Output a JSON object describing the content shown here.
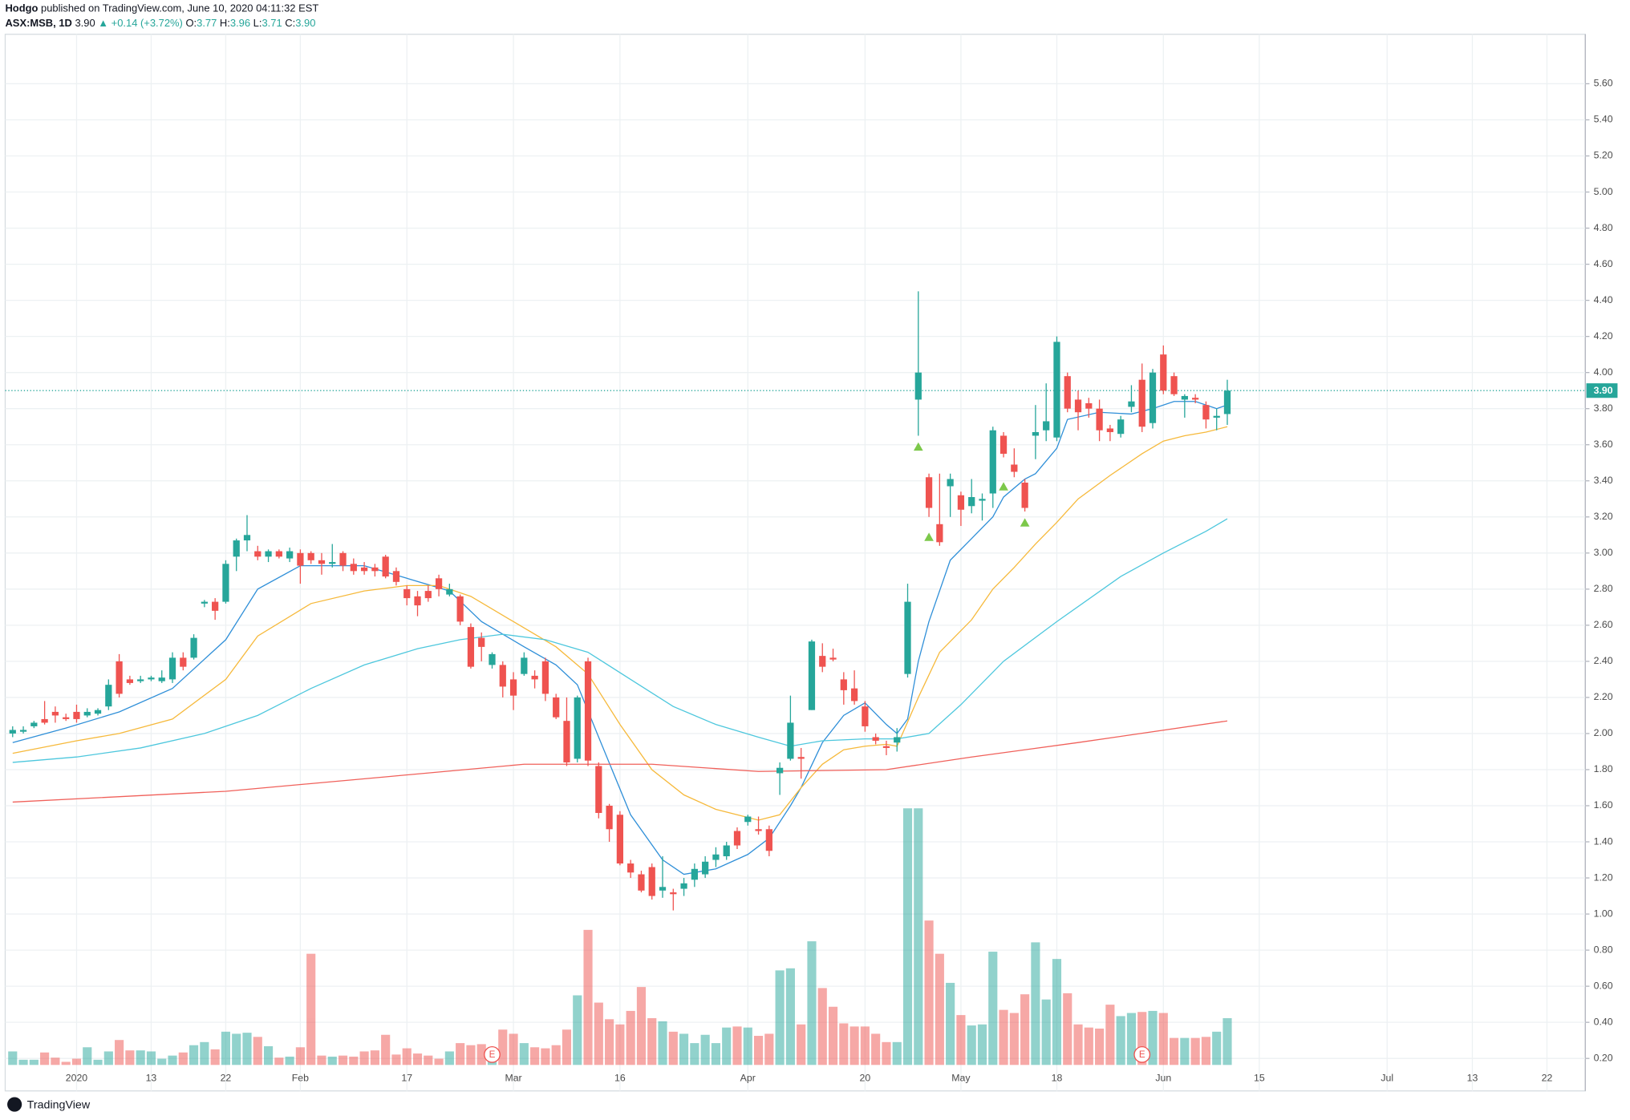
{
  "header": {
    "author": "Hodgo",
    "published": "published on TradingView.com, June 10, 2020 04:11:32 EST",
    "symbol": "ASX:MSB, 1D",
    "price": "3.90",
    "change": "▲ +0.14 (+3.72%)",
    "ohlc": [
      {
        "label": "O:",
        "value": "3.77"
      },
      {
        "label": "H:",
        "value": "3.96"
      },
      {
        "label": "L:",
        "value": "3.71"
      },
      {
        "label": "C:",
        "value": "3.90"
      }
    ]
  },
  "footer": {
    "logo": "TradingView"
  },
  "chart_data": {
    "type": "candlestick",
    "up_color": "#26a69a",
    "down_color": "#ef5350",
    "grid": true,
    "ylim": [
      0.02,
      5.874
    ],
    "yticks": [
      {
        "value": 0.2,
        "label": "0.20"
      },
      {
        "value": 0.4,
        "label": "0.40"
      },
      {
        "value": 0.6,
        "label": "0.60"
      },
      {
        "value": 0.8,
        "label": "0.80"
      },
      {
        "value": 1.0,
        "label": "1.00"
      },
      {
        "value": 1.2,
        "label": "1.20"
      },
      {
        "value": 1.4,
        "label": "1.40"
      },
      {
        "value": 1.6,
        "label": "1.60"
      },
      {
        "value": 1.8,
        "label": "1.80"
      },
      {
        "value": 2.0,
        "label": "2.00"
      },
      {
        "value": 2.2,
        "label": "2.20"
      },
      {
        "value": 2.4,
        "label": "2.40"
      },
      {
        "value": 2.6,
        "label": "2.60"
      },
      {
        "value": 2.8,
        "label": "2.80"
      },
      {
        "value": 3.0,
        "label": "3.00"
      },
      {
        "value": 3.2,
        "label": "3.20"
      },
      {
        "value": 3.4,
        "label": "3.40"
      },
      {
        "value": 3.6,
        "label": "3.60"
      },
      {
        "value": 3.8,
        "label": "3.80"
      },
      {
        "value": 4.0,
        "label": "4.00"
      },
      {
        "value": 4.2,
        "label": "4.20"
      },
      {
        "value": 4.4,
        "label": "4.40"
      },
      {
        "value": 4.6,
        "label": "4.60"
      },
      {
        "value": 4.8,
        "label": "4.80"
      },
      {
        "value": 5.0,
        "label": "5.00"
      },
      {
        "value": 5.2,
        "label": "5.20"
      },
      {
        "value": 5.4,
        "label": "5.40"
      },
      {
        "value": 5.6,
        "label": "5.60"
      }
    ],
    "xlim": [
      -0.7,
      147.6
    ],
    "xticks": [
      {
        "value": 6,
        "label": "2020"
      },
      {
        "value": 13,
        "label": "13"
      },
      {
        "value": 20,
        "label": "22"
      },
      {
        "value": 27,
        "label": "Feb"
      },
      {
        "value": 37,
        "label": "17"
      },
      {
        "value": 47,
        "label": "Mar"
      },
      {
        "value": 57,
        "label": "16"
      },
      {
        "value": 69,
        "label": "Apr"
      },
      {
        "value": 80,
        "label": "20"
      },
      {
        "value": 89,
        "label": "May"
      },
      {
        "value": 98,
        "label": "18"
      },
      {
        "value": 108,
        "label": "Jun"
      },
      {
        "value": 117,
        "label": "15"
      },
      {
        "value": 129,
        "label": "Jul"
      },
      {
        "value": 137,
        "label": "13"
      },
      {
        "value": 144,
        "label": "22"
      }
    ],
    "candles": [
      [
        2.0,
        2.04,
        1.98,
        2.02
      ],
      [
        2.01,
        2.04,
        2.0,
        2.02
      ],
      [
        2.04,
        2.07,
        2.03,
        2.06
      ],
      [
        2.08,
        2.18,
        2.05,
        2.06
      ],
      [
        2.12,
        2.15,
        2.06,
        2.1
      ],
      [
        2.09,
        2.11,
        2.07,
        2.08
      ],
      [
        2.12,
        2.16,
        2.06,
        2.08
      ],
      [
        2.1,
        2.14,
        2.09,
        2.12
      ],
      [
        2.11,
        2.14,
        2.1,
        2.13
      ],
      [
        2.15,
        2.3,
        2.13,
        2.27
      ],
      [
        2.4,
        2.44,
        2.2,
        2.22
      ],
      [
        2.3,
        2.32,
        2.27,
        2.28
      ],
      [
        2.29,
        2.32,
        2.28,
        2.3
      ],
      [
        2.3,
        2.32,
        2.29,
        2.31
      ],
      [
        2.29,
        2.35,
        2.28,
        2.31
      ],
      [
        2.3,
        2.45,
        2.28,
        2.42
      ],
      [
        2.42,
        2.45,
        2.35,
        2.37
      ],
      [
        2.42,
        2.55,
        2.41,
        2.53
      ],
      [
        2.72,
        2.74,
        2.7,
        2.73
      ],
      [
        2.73,
        2.75,
        2.63,
        2.68
      ],
      [
        2.73,
        2.96,
        2.72,
        2.94
      ],
      [
        2.98,
        3.08,
        2.9,
        3.07
      ],
      [
        3.07,
        3.21,
        3.01,
        3.1
      ],
      [
        3.01,
        3.04,
        2.96,
        2.98
      ],
      [
        2.98,
        3.02,
        2.95,
        3.01
      ],
      [
        3.01,
        3.02,
        2.97,
        2.98
      ],
      [
        2.97,
        3.03,
        2.95,
        3.01
      ],
      [
        3.0,
        3.02,
        2.83,
        2.93
      ],
      [
        3.0,
        3.01,
        2.94,
        2.96
      ],
      [
        2.96,
        3.0,
        2.88,
        2.94
      ],
      [
        2.94,
        3.05,
        2.92,
        2.95
      ],
      [
        3.0,
        3.01,
        2.9,
        2.93
      ],
      [
        2.94,
        2.97,
        2.88,
        2.9
      ],
      [
        2.92,
        2.95,
        2.88,
        2.9
      ],
      [
        2.92,
        2.94,
        2.87,
        2.9
      ],
      [
        2.98,
        2.99,
        2.86,
        2.87
      ],
      [
        2.9,
        2.92,
        2.82,
        2.84
      ],
      [
        2.8,
        2.82,
        2.71,
        2.75
      ],
      [
        2.76,
        2.79,
        2.65,
        2.71
      ],
      [
        2.79,
        2.82,
        2.73,
        2.75
      ],
      [
        2.86,
        2.88,
        2.76,
        2.8
      ],
      [
        2.77,
        2.83,
        2.76,
        2.8
      ],
      [
        2.76,
        2.77,
        2.6,
        2.62
      ],
      [
        2.59,
        2.61,
        2.36,
        2.37
      ],
      [
        2.53,
        2.56,
        2.4,
        2.48
      ],
      [
        2.38,
        2.45,
        2.36,
        2.44
      ],
      [
        2.38,
        2.4,
        2.2,
        2.26
      ],
      [
        2.3,
        2.34,
        2.13,
        2.21
      ],
      [
        2.33,
        2.45,
        2.32,
        2.42
      ],
      [
        2.32,
        2.35,
        2.25,
        2.3
      ],
      [
        2.4,
        2.42,
        2.18,
        2.22
      ],
      [
        2.2,
        2.22,
        2.08,
        2.09
      ],
      [
        2.07,
        2.2,
        1.82,
        1.84
      ],
      [
        1.86,
        2.21,
        1.84,
        2.2
      ],
      [
        2.4,
        2.42,
        1.82,
        1.85
      ],
      [
        1.82,
        1.84,
        1.53,
        1.56
      ],
      [
        1.6,
        1.61,
        1.4,
        1.47
      ],
      [
        1.55,
        1.57,
        1.27,
        1.28
      ],
      [
        1.28,
        1.3,
        1.2,
        1.23
      ],
      [
        1.22,
        1.24,
        1.12,
        1.13
      ],
      [
        1.26,
        1.28,
        1.08,
        1.1
      ],
      [
        1.13,
        1.32,
        1.09,
        1.15
      ],
      [
        1.12,
        1.14,
        1.02,
        1.11
      ],
      [
        1.14,
        1.2,
        1.1,
        1.17
      ],
      [
        1.19,
        1.28,
        1.15,
        1.25
      ],
      [
        1.22,
        1.32,
        1.2,
        1.29
      ],
      [
        1.3,
        1.37,
        1.26,
        1.33
      ],
      [
        1.32,
        1.4,
        1.3,
        1.38
      ],
      [
        1.46,
        1.48,
        1.36,
        1.38
      ],
      [
        1.51,
        1.55,
        1.49,
        1.54
      ],
      [
        1.47,
        1.54,
        1.44,
        1.46
      ],
      [
        1.47,
        1.49,
        1.32,
        1.35
      ],
      [
        1.78,
        1.84,
        1.66,
        1.81
      ],
      [
        1.86,
        2.21,
        1.85,
        2.06
      ],
      [
        1.87,
        1.92,
        1.75,
        1.86
      ],
      [
        2.13,
        2.52,
        2.13,
        2.51
      ],
      [
        2.43,
        2.5,
        2.34,
        2.37
      ],
      [
        2.42,
        2.47,
        2.4,
        2.41
      ],
      [
        2.3,
        2.34,
        2.16,
        2.24
      ],
      [
        2.25,
        2.35,
        2.16,
        2.18
      ],
      [
        2.15,
        2.18,
        2.01,
        2.04
      ],
      [
        1.98,
        2.0,
        1.94,
        1.96
      ],
      [
        1.93,
        1.96,
        1.88,
        1.92
      ],
      [
        1.95,
        2.03,
        1.9,
        1.98
      ],
      [
        2.33,
        2.83,
        2.31,
        2.73
      ],
      [
        3.85,
        4.45,
        3.65,
        4.0
      ],
      [
        3.42,
        3.44,
        3.2,
        3.25
      ],
      [
        3.16,
        3.44,
        3.04,
        3.06
      ],
      [
        3.37,
        3.44,
        3.2,
        3.41
      ],
      [
        3.32,
        3.34,
        3.15,
        3.24
      ],
      [
        3.26,
        3.41,
        3.22,
        3.31
      ],
      [
        3.29,
        3.33,
        3.18,
        3.3
      ],
      [
        3.33,
        3.7,
        3.25,
        3.68
      ],
      [
        3.65,
        3.67,
        3.53,
        3.55
      ],
      [
        3.49,
        3.58,
        3.42,
        3.45
      ],
      [
        3.39,
        3.41,
        3.23,
        3.25
      ],
      [
        3.65,
        3.82,
        3.52,
        3.67
      ],
      [
        3.68,
        3.94,
        3.62,
        3.73
      ],
      [
        3.64,
        4.2,
        3.62,
        4.17
      ],
      [
        3.98,
        4.0,
        3.78,
        3.8
      ],
      [
        3.85,
        3.9,
        3.68,
        3.78
      ],
      [
        3.83,
        3.86,
        3.75,
        3.8
      ],
      [
        3.8,
        3.85,
        3.62,
        3.68
      ],
      [
        3.69,
        3.71,
        3.62,
        3.67
      ],
      [
        3.66,
        3.76,
        3.64,
        3.74
      ],
      [
        3.81,
        3.93,
        3.78,
        3.84
      ],
      [
        3.96,
        4.05,
        3.67,
        3.7
      ],
      [
        3.72,
        4.02,
        3.69,
        4.0
      ],
      [
        4.1,
        4.15,
        3.88,
        3.9
      ],
      [
        3.98,
        4.0,
        3.87,
        3.88
      ],
      [
        3.85,
        3.88,
        3.75,
        3.87
      ],
      [
        3.86,
        3.88,
        3.83,
        3.85
      ],
      [
        3.82,
        3.84,
        3.69,
        3.74
      ],
      [
        3.75,
        3.8,
        3.68,
        3.76
      ],
      [
        3.77,
        3.96,
        3.71,
        3.9
      ]
    ],
    "volume": [
      13,
      5,
      5,
      12,
      7,
      3,
      6,
      17,
      5,
      13,
      24,
      14,
      14,
      13,
      6,
      9,
      12,
      19,
      22,
      15,
      32,
      30,
      31,
      27,
      18,
      7,
      8,
      17,
      107,
      9,
      8,
      9,
      8,
      13,
      14,
      29,
      10,
      16,
      11,
      9,
      6,
      13,
      21,
      19,
      20,
      17,
      34,
      30,
      21,
      17,
      16,
      19,
      34,
      67,
      130,
      60,
      44,
      39,
      52,
      75,
      45,
      42,
      32,
      30,
      21,
      29,
      21,
      36,
      37,
      36,
      28,
      30,
      91,
      93,
      39,
      119,
      74,
      56,
      40,
      37,
      37,
      30,
      22,
      22,
      247,
      247,
      139,
      107,
      79,
      48,
      38,
      39,
      109,
      53,
      50,
      68,
      118,
      63,
      102,
      69,
      39,
      36,
      35,
      58,
      47,
      50,
      51,
      52,
      50,
      26,
      26,
      26,
      27,
      32,
      45
    ],
    "moving_averages": [
      {
        "color": "#2f8fd8",
        "x": [
          0,
          5,
          10,
          15,
          20,
          23,
          27,
          33,
          37,
          41,
          44,
          48,
          51,
          53,
          55,
          58,
          61,
          63,
          66,
          69,
          71,
          73,
          74,
          76,
          78,
          80,
          82,
          83,
          84,
          85,
          86,
          88,
          90,
          92,
          93,
          95,
          96,
          98,
          99,
          102,
          105,
          107,
          109,
          111,
          113,
          114
        ],
        "values": [
          1.95,
          2.03,
          2.12,
          2.25,
          2.52,
          2.8,
          2.93,
          2.93,
          2.86,
          2.79,
          2.62,
          2.48,
          2.38,
          2.27,
          1.98,
          1.55,
          1.3,
          1.22,
          1.25,
          1.33,
          1.42,
          1.6,
          1.7,
          1.95,
          2.1,
          2.17,
          2.05,
          2.0,
          2.08,
          2.4,
          2.62,
          2.96,
          3.08,
          3.2,
          3.31,
          3.41,
          3.44,
          3.58,
          3.74,
          3.78,
          3.77,
          3.8,
          3.84,
          3.84,
          3.8,
          3.82
        ]
      },
      {
        "color": "#f6b93b",
        "x": [
          0,
          6,
          10,
          15,
          20,
          23,
          28,
          33,
          37,
          40,
          43,
          47,
          51,
          54,
          57,
          60,
          63,
          66,
          68,
          70,
          72,
          74,
          76,
          78,
          80,
          82,
          83,
          85,
          87,
          90,
          92,
          94,
          96,
          98,
          100,
          103,
          106,
          108,
          110,
          112,
          114
        ],
        "values": [
          1.89,
          1.96,
          2.0,
          2.08,
          2.3,
          2.54,
          2.72,
          2.79,
          2.82,
          2.82,
          2.76,
          2.62,
          2.48,
          2.33,
          2.05,
          1.8,
          1.66,
          1.58,
          1.55,
          1.52,
          1.55,
          1.7,
          1.83,
          1.91,
          1.93,
          1.94,
          1.93,
          2.2,
          2.45,
          2.63,
          2.8,
          2.92,
          3.05,
          3.17,
          3.3,
          3.43,
          3.55,
          3.62,
          3.65,
          3.67,
          3.7
        ]
      },
      {
        "color": "#4dc7dd",
        "x": [
          0,
          6,
          12,
          18,
          23,
          28,
          33,
          38,
          42,
          46,
          50,
          54,
          58,
          62,
          66,
          70,
          73,
          76,
          80,
          83,
          86,
          89,
          93,
          98,
          104,
          108,
          112,
          114
        ],
        "values": [
          1.84,
          1.87,
          1.92,
          2.0,
          2.1,
          2.25,
          2.38,
          2.47,
          2.52,
          2.55,
          2.52,
          2.45,
          2.3,
          2.15,
          2.05,
          1.98,
          1.93,
          1.96,
          1.97,
          1.97,
          2.0,
          2.16,
          2.4,
          2.62,
          2.87,
          3.0,
          3.12,
          3.19
        ]
      },
      {
        "color": "#f0605a",
        "x": [
          0,
          20,
          35,
          48,
          60,
          70,
          82,
          90,
          100,
          114
        ],
        "values": [
          1.62,
          1.68,
          1.76,
          1.83,
          1.83,
          1.79,
          1.8,
          1.87,
          1.95,
          2.07
        ]
      }
    ],
    "signals": {
      "color": "#7cc84a",
      "x": [
        85,
        86,
        93,
        95
      ],
      "values": [
        3.59,
        3.09,
        3.37,
        3.17
      ]
    },
    "events": {
      "x": [
        45,
        106
      ],
      "label": "E"
    }
  }
}
